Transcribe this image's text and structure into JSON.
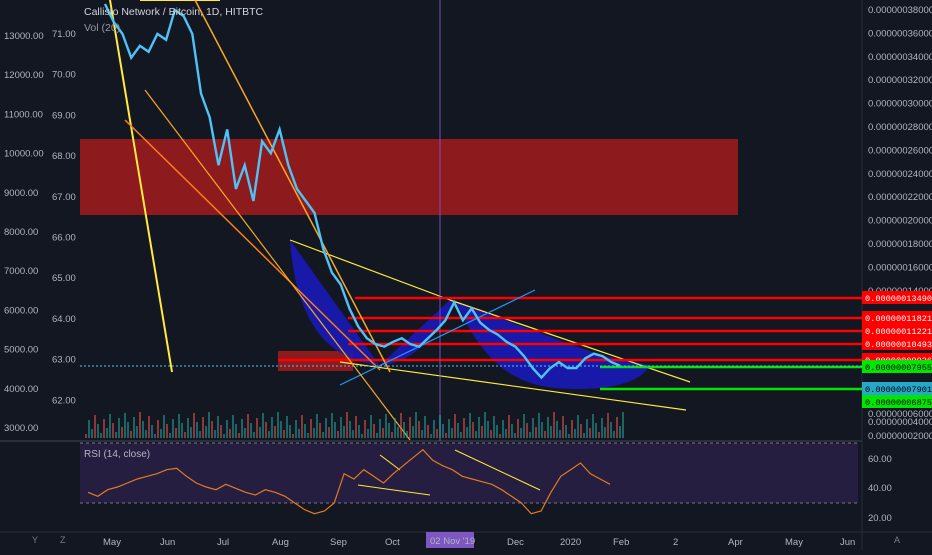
{
  "header": {
    "title": "Callisto Network / Bitcoin, 1D, HITBTC",
    "volume_label": "Vol (20)",
    "rsi_label": "RSI (14, close)"
  },
  "footer": {
    "left_button": "Y",
    "right_button": "A",
    "z_button": "Z"
  },
  "chart_data": {
    "type": "line",
    "price_axis_right": [
      "0.00000038000",
      "0.00000036000",
      "0.00000034000",
      "0.00000032000",
      "0.00000030000",
      "0.00000028000",
      "0.00000026000",
      "0.00000024000",
      "0.00000022000",
      "0.00000020000",
      "0.00000018000",
      "0.00000016000",
      "0.00000014000",
      "0.00000008000",
      "0.00000006000",
      "0.00000004000",
      "0.00000002000"
    ],
    "price_tags": [
      {
        "label": "0.00000013490",
        "color": "#ff0000"
      },
      {
        "label": "0.00000011821",
        "color": "#ff0000"
      },
      {
        "label": "0.00000011221",
        "color": "#ff0000"
      },
      {
        "label": "0.00000010493",
        "color": "#ff0000"
      },
      {
        "label": "0.00000009926",
        "color": "#ff0000"
      },
      {
        "label": "0.00000007955",
        "color": "#00e600"
      },
      {
        "label": "0.00000007901",
        "color": "#26a8c9"
      },
      {
        "label": "0.00000006875",
        "color": "#00e600"
      }
    ],
    "left_axis_usd": [
      "13000.00",
      "12000.00",
      "11000.00",
      "10000.00",
      "9000.00",
      "8000.00",
      "7000.00",
      "6000.00",
      "5000.00",
      "4000.00",
      "3000.00"
    ],
    "inner_axis": [
      "71.00",
      "70.00",
      "69.00",
      "68.00",
      "67.00",
      "66.00",
      "65.00",
      "64.00",
      "63.00",
      "62.00"
    ],
    "rsi_axis": [
      "60.00",
      "40.00",
      "20.00"
    ],
    "x_ticks": [
      "May",
      "Jun",
      "Jul",
      "Aug",
      "Sep",
      "Oct",
      "Dec",
      "2020",
      "Feb",
      "2",
      "Apr",
      "May",
      "Jun"
    ],
    "x_highlight": "02 Nov '19",
    "price_series": [
      3.85e-07,
      3.7e-07,
      3.6e-07,
      3.4e-07,
      3.5e-07,
      3.45e-07,
      3.6e-07,
      3.55e-07,
      3.8e-07,
      3.75e-07,
      3.6e-07,
      3.1e-07,
      2.9e-07,
      2.5e-07,
      2.8e-07,
      2.3e-07,
      2.5e-07,
      2.2e-07,
      2.7e-07,
      2.6e-07,
      2.8e-07,
      2.5e-07,
      2.3e-07,
      2.2e-07,
      2.1e-07,
      1.8e-07,
      1.6e-07,
      1.5e-07,
      1.3e-07,
      1.15e-07,
      1.05e-07,
      1e-07,
      9.8e-08,
      1.02e-07,
      1.05e-07,
      1e-07,
      9.8e-08,
      1.05e-07,
      1.12e-07,
      1.2e-07,
      1.35e-07,
      1.2e-07,
      1.3e-07,
      1.18e-07,
      1.12e-07,
      1.08e-07,
      1.02e-07,
      9.8e-08,
      9e-08,
      8e-08,
      7.2e-08,
      8e-08,
      8.5e-08,
      8e-08,
      8e-08,
      8.8e-08,
      9.2e-08,
      9e-08,
      8.5e-08,
      8.2e-08
    ],
    "rsi_series": [
      38,
      35,
      40,
      42,
      45,
      48,
      50,
      52,
      55,
      56,
      50,
      45,
      42,
      40,
      44,
      41,
      38,
      36,
      40,
      38,
      35,
      30,
      25,
      22,
      24,
      30,
      52,
      48,
      55,
      50,
      45,
      52,
      58,
      64,
      70,
      62,
      58,
      55,
      50,
      48,
      46,
      44,
      40,
      35,
      30,
      22,
      24,
      38,
      50,
      55,
      60,
      52,
      48,
      44
    ],
    "rsi_bands": [
      70,
      30
    ],
    "rsi_ylim": [
      15,
      75
    ]
  }
}
